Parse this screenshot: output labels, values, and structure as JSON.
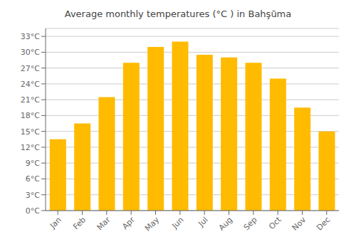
{
  "chart_data": {
    "type": "bar",
    "title": "Average monthly temperatures (°C ) in Bahşūma",
    "categories": [
      "Jan",
      "Feb",
      "Mar",
      "Apr",
      "May",
      "Jun",
      "Jul",
      "Aug",
      "Sep",
      "Oct",
      "Nov",
      "Dec"
    ],
    "values": [
      13.5,
      16.5,
      21.5,
      28.0,
      31.0,
      32.0,
      29.5,
      29.0,
      28.0,
      25.0,
      19.5,
      15.0
    ],
    "color": "#FFBB00",
    "ylim": [
      0,
      34.5
    ],
    "yticks": [
      {
        "value": 0,
        "label": "0°C"
      },
      {
        "value": 3,
        "label": "3°C"
      },
      {
        "value": 6,
        "label": "6°C"
      },
      {
        "value": 9,
        "label": "9°C"
      },
      {
        "value": 12,
        "label": "12°C"
      },
      {
        "value": 15,
        "label": "15°C"
      },
      {
        "value": 18,
        "label": "18°C"
      },
      {
        "value": 21,
        "label": "21°C"
      },
      {
        "value": 24,
        "label": "24°C"
      },
      {
        "value": 27,
        "label": "27°C"
      },
      {
        "value": 30,
        "label": "30°C"
      },
      {
        "value": 33,
        "label": "33°C"
      }
    ],
    "grid": true
  }
}
